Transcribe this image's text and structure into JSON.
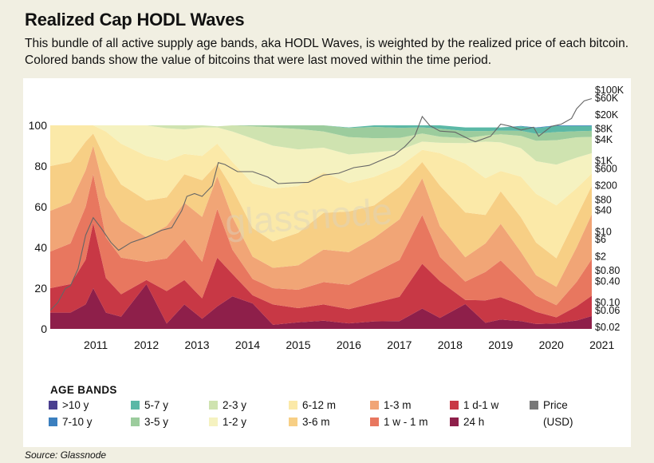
{
  "title": "Realized Cap HODL Waves",
  "subtitle": "This bundle of all active supply age bands, aka HODL Waves, is weighted by the realized price of each bitcoin. Colored bands show the value of bitcoins that were last moved within the time period.",
  "source": "Source: Glassnode",
  "watermark": "glassnode",
  "legend": {
    "title": "AGE BANDS",
    "items": [
      {
        "label": ">10 y",
        "color": "#4a3f8f"
      },
      {
        "label": "7-10 y",
        "color": "#3b7fbf"
      },
      {
        "label": "5-7 y",
        "color": "#5bb8a6"
      },
      {
        "label": "3-5 y",
        "color": "#9ccc9d"
      },
      {
        "label": "2-3 y",
        "color": "#cfe3b0"
      },
      {
        "label": "1-2 y",
        "color": "#f5f2c0"
      },
      {
        "label": "6-12 m",
        "color": "#fbe9a8"
      },
      {
        "label": "3-6 m",
        "color": "#f7cf85"
      },
      {
        "label": "1-3 m",
        "color": "#f1a576"
      },
      {
        "label": "1 w - 1 m",
        "color": "#e8775f"
      },
      {
        "label": "1 d-1 w",
        "color": "#c83845"
      },
      {
        "label": "24 h",
        "color": "#8e1f4a"
      },
      {
        "label": "Price",
        "color": "#777777"
      },
      {
        "label": "(USD)",
        "color": ""
      }
    ]
  },
  "chart_data": {
    "type": "area",
    "stacked_percent": true,
    "x_ticks": [
      "2011",
      "2012",
      "2013",
      "2014",
      "2015",
      "2016",
      "2017",
      "2018",
      "2019",
      "2020",
      "2021"
    ],
    "x_range": [
      2010.6,
      2021.3
    ],
    "y_left": {
      "range": [
        0,
        100
      ],
      "ticks": [
        0,
        20,
        40,
        60,
        80,
        100
      ]
    },
    "y_right": {
      "scale": "log",
      "range": [
        0.02,
        100000
      ],
      "tick_labels": [
        "$100K",
        "$60K",
        "$20K",
        "$8K",
        "$4K",
        "$1K",
        "$600",
        "$200",
        "$80",
        "$40",
        "$10",
        "$6",
        "$2",
        "$0.80",
        "$0.40",
        "$0.10",
        "$0.06",
        "$0.02"
      ],
      "tick_values": [
        100000,
        60000,
        20000,
        8000,
        4000,
        1000,
        600,
        200,
        80,
        40,
        10,
        6,
        2,
        0.8,
        0.4,
        0.1,
        0.06,
        0.02
      ]
    },
    "x": [
      2010.6,
      2011.0,
      2011.3,
      2011.45,
      2011.7,
      2012.0,
      2012.5,
      2012.9,
      2013.25,
      2013.6,
      2013.9,
      2014.2,
      2014.6,
      2015.0,
      2015.5,
      2016.0,
      2016.5,
      2017.0,
      2017.5,
      2017.95,
      2018.3,
      2018.8,
      2019.2,
      2019.5,
      2019.9,
      2020.2,
      2020.6,
      2021.0,
      2021.3
    ],
    "series": [
      {
        "name": ">10 y",
        "values": [
          0,
          0,
          0,
          0,
          0,
          0,
          0,
          0,
          0,
          0,
          0,
          0,
          0,
          0,
          0,
          0,
          0,
          0,
          0,
          0,
          0,
          0,
          0,
          0,
          0,
          0,
          0,
          0,
          0
        ]
      },
      {
        "name": "7-10 y",
        "values": [
          0,
          0,
          0,
          0,
          0,
          0,
          0,
          0,
          0,
          0,
          0,
          0,
          0,
          0,
          0,
          0,
          0,
          0,
          0,
          0,
          0,
          0,
          0,
          0,
          0.2,
          0.3,
          0.3,
          0.3,
          0.3
        ]
      },
      {
        "name": "5-7 y",
        "values": [
          0,
          0,
          0,
          0,
          0,
          0,
          0,
          0,
          0,
          0,
          0,
          0,
          0,
          0,
          0,
          0,
          0.3,
          0.8,
          1.2,
          1.0,
          1.6,
          1.8,
          1.8,
          1.6,
          2.2,
          2.8,
          3.0,
          2.6,
          2.4
        ]
      },
      {
        "name": "3-5 y",
        "values": [
          0,
          0,
          0,
          0,
          0,
          0,
          0,
          0,
          0,
          0,
          0,
          0,
          0.5,
          1.0,
          1.8,
          3.0,
          4.5,
          5.5,
          5.0,
          3.0,
          4.0,
          3.5,
          2.2,
          1.8,
          2.5,
          3.5,
          4.0,
          3.0,
          3.0
        ]
      },
      {
        "name": "2-3 y",
        "values": [
          0,
          0,
          0,
          0,
          0,
          0,
          0,
          1.5,
          2.0,
          1.0,
          0.5,
          3.0,
          6.0,
          9.0,
          10.0,
          8.0,
          8.5,
          7.0,
          6.0,
          4.0,
          3.0,
          2.5,
          3.0,
          4.0,
          6.0,
          10.0,
          12.0,
          10.0,
          8.0
        ]
      },
      {
        "name": "1-2 y",
        "values": [
          0,
          0,
          0,
          0,
          3.0,
          9.0,
          15.0,
          16.0,
          12.0,
          14.0,
          8.0,
          15.0,
          22.0,
          21.0,
          18.0,
          12.0,
          14.0,
          12.0,
          8.0,
          4.0,
          5.0,
          10.0,
          18.0,
          14.0,
          14.0,
          16.0,
          20.0,
          15.0,
          10.0
        ]
      },
      {
        "name": "6-12 m",
        "values": [
          20.0,
          18.0,
          8.0,
          4.0,
          14.0,
          20.0,
          22.0,
          18.0,
          10.0,
          12.0,
          10.0,
          13.0,
          22.0,
          26.0,
          23.0,
          20.0,
          14.0,
          14.0,
          10.0,
          6.0,
          16.0,
          24.0,
          18.0,
          10.0,
          20.0,
          24.0,
          26.0,
          14.0,
          6.0
        ]
      },
      {
        "name": "3-6 m",
        "values": [
          22.0,
          20.0,
          14.0,
          6.0,
          18.0,
          18.0,
          18.0,
          14.0,
          14.0,
          18.0,
          6.0,
          14.0,
          14.0,
          13.0,
          16.0,
          18.0,
          20.0,
          16.0,
          16.0,
          8.0,
          20.0,
          22.0,
          14.0,
          16.0,
          17.0,
          16.0,
          14.0,
          15.0,
          14.0
        ]
      },
      {
        "name": "1-3 m",
        "values": [
          20.0,
          20.0,
          18.0,
          14.0,
          20.0,
          18.0,
          12.0,
          16.0,
          18.0,
          22.0,
          16.0,
          16.0,
          11.0,
          10.0,
          12.0,
          16.0,
          16.0,
          17.0,
          20.0,
          18.0,
          15.0,
          12.0,
          14.0,
          18.0,
          14.0,
          10.0,
          9.0,
          17.0,
          22.0
        ]
      },
      {
        "name": "1 w - 1 m",
        "values": [
          18.0,
          20.0,
          26.0,
          24.0,
          20.0,
          18.0,
          9.0,
          16.0,
          20.0,
          18.0,
          24.0,
          12.0,
          8.0,
          8.0,
          9.0,
          11.0,
          12.0,
          15.0,
          18.0,
          24.0,
          12.0,
          9.0,
          14.0,
          18.0,
          12.0,
          8.0,
          6.0,
          12.0,
          18.0
        ]
      },
      {
        "name": "1 d-1 w",
        "values": [
          12.0,
          14.0,
          22.0,
          32.0,
          17.0,
          11.0,
          2.0,
          16.0,
          12.0,
          10.0,
          24.0,
          11.0,
          4.0,
          10.0,
          7.0,
          8.0,
          7.0,
          9.0,
          12.0,
          22.0,
          18.0,
          2.0,
          11.0,
          11.0,
          8.0,
          6.0,
          3.0,
          7.0,
          10.0
        ]
      },
      {
        "name": "24 h",
        "values": [
          8.0,
          8.0,
          12.0,
          20.0,
          8.0,
          6.0,
          22.0,
          2.6,
          12.0,
          5.0,
          11.0,
          16.0,
          12.5,
          2.0,
          3.2,
          4.0,
          2.7,
          3.7,
          3.8,
          10.0,
          5.4,
          12.2,
          3.0,
          4.6,
          3.8,
          2.4,
          2.7,
          4.1,
          6.3
        ]
      }
    ],
    "price": {
      "name": "Price",
      "x": [
        2010.6,
        2010.75,
        2010.9,
        2011.0,
        2011.15,
        2011.3,
        2011.45,
        2011.6,
        2011.8,
        2011.95,
        2012.2,
        2012.5,
        2012.8,
        2013.0,
        2013.2,
        2013.3,
        2013.45,
        2013.6,
        2013.8,
        2013.92,
        2014.05,
        2014.3,
        2014.6,
        2014.9,
        2015.1,
        2015.4,
        2015.7,
        2016.0,
        2016.3,
        2016.6,
        2016.9,
        2017.1,
        2017.4,
        2017.6,
        2017.8,
        2017.95,
        2018.1,
        2018.3,
        2018.6,
        2018.9,
        2019.0,
        2019.3,
        2019.5,
        2019.7,
        2019.9,
        2020.15,
        2020.25,
        2020.5,
        2020.7,
        2020.9,
        2021.0,
        2021.15,
        2021.3
      ],
      "values": [
        0.06,
        0.1,
        0.25,
        0.3,
        0.9,
        8,
        25,
        13,
        5,
        3,
        5,
        7,
        11,
        13,
        40,
        100,
        120,
        100,
        200,
        900,
        800,
        500,
        500,
        350,
        230,
        240,
        250,
        400,
        450,
        650,
        750,
        1000,
        1500,
        2500,
        5000,
        18000,
        10000,
        7000,
        6500,
        4000,
        3500,
        5000,
        11000,
        9500,
        7500,
        9000,
        5000,
        9500,
        11000,
        16000,
        30000,
        50000,
        58000
      ]
    }
  }
}
